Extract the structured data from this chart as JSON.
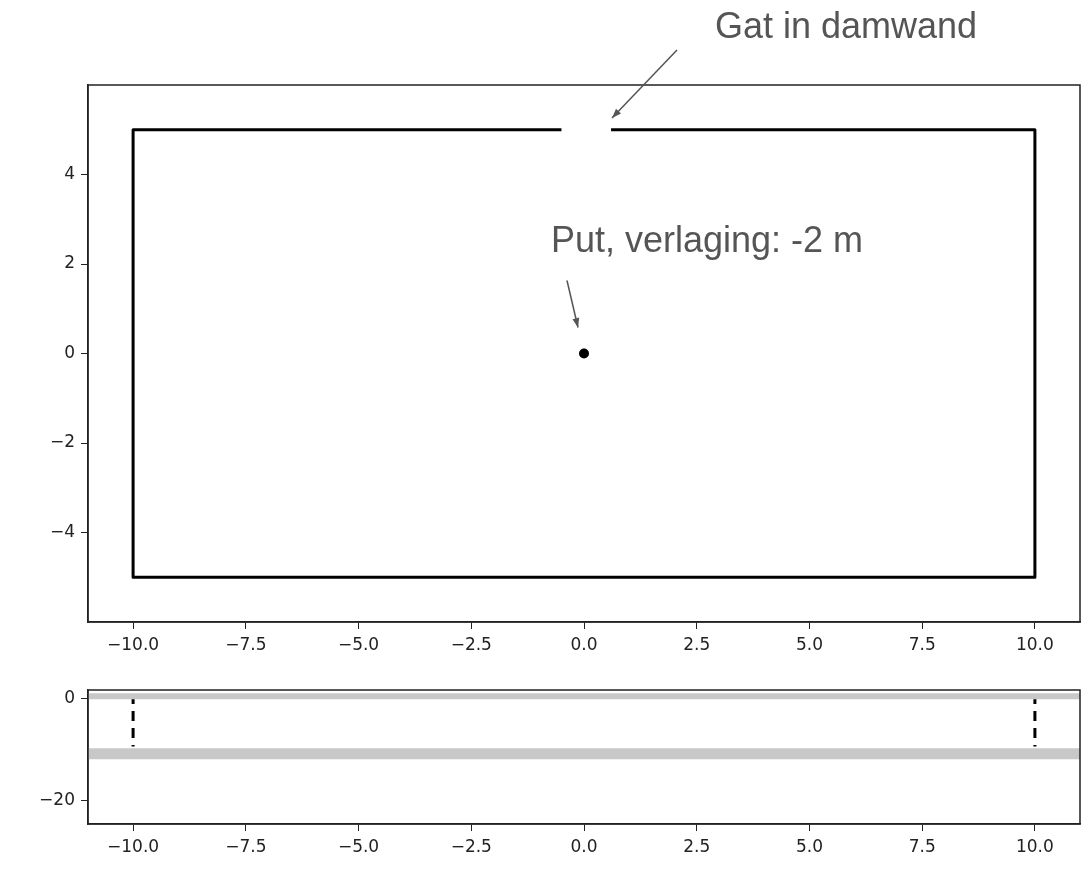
{
  "chart_data": [
    {
      "type": "line",
      "xlim": [
        -11,
        11
      ],
      "ylim": [
        -6,
        6
      ],
      "xticks": [
        {
          "value": -10,
          "label": "−10.0"
        },
        {
          "value": -7.5,
          "label": "−7.5"
        },
        {
          "value": -5,
          "label": "−5.0"
        },
        {
          "value": -2.5,
          "label": "−2.5"
        },
        {
          "value": 0,
          "label": "0.0"
        },
        {
          "value": 2.5,
          "label": "2.5"
        },
        {
          "value": 5,
          "label": "5.0"
        },
        {
          "value": 7.5,
          "label": "7.5"
        },
        {
          "value": 10,
          "label": "10.0"
        }
      ],
      "yticks": [
        {
          "value": -4,
          "label": "−4"
        },
        {
          "value": -2,
          "label": "−2"
        },
        0,
        2,
        4
      ],
      "grid": false,
      "legend": false,
      "series": [
        {
          "type": "line",
          "color": "#000000",
          "marker": "none",
          "x": [
            -0.5,
            -10,
            -10,
            10,
            10,
            0.6
          ],
          "values": [
            5,
            5,
            -5,
            -5,
            5,
            5
          ]
        },
        {
          "type": "scatter",
          "color": "#000000",
          "marker": "circle",
          "x": [
            0
          ],
          "values": [
            0
          ]
        }
      ],
      "annotations": [
        "Gat in damwand",
        {
          "text": "Put, verlaging: -2 m",
          "x": 0,
          "y": 0
        }
      ]
    },
    {
      "type": "line",
      "xlim": [
        -11,
        11
      ],
      "ylim": [
        -24.5,
        1.6
      ],
      "xticks": [
        {
          "value": -10,
          "label": "−10.0"
        },
        {
          "value": -7.5,
          "label": "−7.5"
        },
        {
          "value": -5,
          "label": "−5.0"
        },
        {
          "value": -2.5,
          "label": "−2.5"
        },
        {
          "value": 0,
          "label": "0.0"
        },
        {
          "value": 2.5,
          "label": "2.5"
        },
        {
          "value": 5,
          "label": "5.0"
        },
        {
          "value": 7.5,
          "label": "7.5"
        },
        {
          "value": 10,
          "label": "10.0"
        }
      ],
      "yticks": [
        {
          "value": -20,
          "label": "−20"
        },
        0
      ],
      "grid": false,
      "legend": false,
      "series": [
        {
          "type": "line",
          "color": "#c8c8c8",
          "marker": "none",
          "x": [
            -11,
            11
          ],
          "values": [
            0.4,
            0.4
          ]
        },
        {
          "type": "line",
          "color": "#c8c8c8",
          "marker": "none",
          "x": [
            -11,
            11
          ],
          "values": [
            -10.8,
            -10.8
          ]
        },
        {
          "type": "line",
          "color": "#000000",
          "marker": "none",
          "line_style": "dashed",
          "x": [
            -10,
            -10
          ],
          "values": [
            0.8,
            -9.4
          ]
        },
        {
          "type": "line",
          "color": "#000000",
          "marker": "none",
          "line_style": "dashed",
          "x": [
            10,
            10
          ],
          "values": [
            0.8,
            -9.4
          ]
        }
      ]
    }
  ]
}
